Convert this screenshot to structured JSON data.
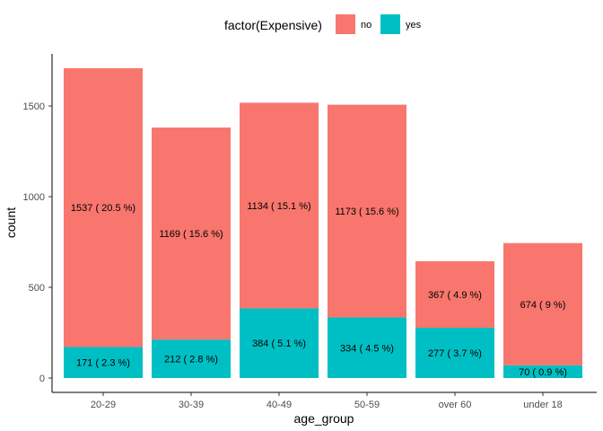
{
  "chart_data": {
    "type": "bar",
    "stacked": true,
    "categories": [
      "20-29",
      "30-39",
      "40-49",
      "50-59",
      "over 60",
      "under 18"
    ],
    "series": [
      {
        "name": "no",
        "color": "#F8766D",
        "values": [
          1537,
          1169,
          1134,
          1173,
          367,
          674
        ],
        "labels": [
          "1537 ( 20.5 %)",
          "1169 ( 15.6 %)",
          "1134 ( 15.1 %)",
          "1173 ( 15.6 %)",
          "367 ( 4.9 %)",
          "674 ( 9 %)"
        ]
      },
      {
        "name": "yes",
        "color": "#00BFC4",
        "values": [
          171,
          212,
          384,
          334,
          277,
          70
        ],
        "labels": [
          "171 ( 2.3 %)",
          "212 ( 2.8 %)",
          "384 ( 5.1 %)",
          "334 ( 4.5 %)",
          "277 ( 3.7 %)",
          "70 ( 0.9 %)"
        ]
      }
    ],
    "stack_order_bottom_to_top": [
      "yes",
      "no"
    ],
    "xlabel": "age_group",
    "ylabel": "count",
    "ylim": [
      0,
      1790
    ],
    "yticks": [
      0,
      500,
      1000,
      1500
    ],
    "grid": false,
    "legend": {
      "title": "factor(Expensive)",
      "position": "top",
      "entries": [
        "no",
        "yes"
      ]
    }
  }
}
